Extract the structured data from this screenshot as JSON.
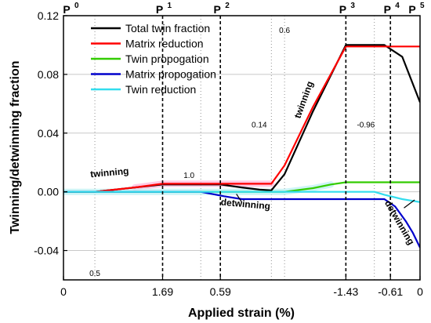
{
  "chart_data": {
    "type": "line",
    "ylabel": "Twinning/detwinning fraction",
    "xlabel": "Applied strain (%)",
    "ylim": [
      -0.06,
      0.12
    ],
    "xlim": [
      0,
      1
    ],
    "yticks": [
      "-0.04",
      "0.00",
      "0.04",
      "0.08",
      "0.12"
    ],
    "ytick_values": [
      -0.04,
      0.0,
      0.04,
      0.08,
      0.12
    ],
    "xticks": [
      {
        "label": "0",
        "x": 0.0
      },
      {
        "label": "1.69",
        "x": 0.278
      },
      {
        "label": "0.59",
        "x": 0.44
      },
      {
        "label": "-1.43",
        "x": 0.792
      },
      {
        "label": "-0.61",
        "x": 0.917
      },
      {
        "label": "0",
        "x": 1.0
      }
    ],
    "markers": [
      {
        "label": "P",
        "sup": "0",
        "x": 0.0
      },
      {
        "label": "P",
        "sup": "1",
        "x": 0.278
      },
      {
        "label": "P",
        "sup": "2",
        "x": 0.44
      },
      {
        "label": "P",
        "sup": "3",
        "x": 0.792
      },
      {
        "label": "P",
        "sup": "4",
        "x": 0.917
      },
      {
        "label": "P",
        "sup": "5",
        "x": 1.0
      }
    ],
    "minor_lines": [
      {
        "x": 0.088,
        "label": "0.5",
        "label_pos": "bottom"
      },
      {
        "x": 0.385,
        "label": "",
        "label_pos": ""
      },
      {
        "x": 0.583,
        "label": "",
        "label_pos": ""
      },
      {
        "x": 0.62,
        "label": "0.6",
        "label_pos": "top"
      },
      {
        "x": 0.872,
        "label": "",
        "label_pos": ""
      }
    ],
    "annotations": [
      {
        "text": "twinning",
        "x": 0.13,
        "y": 0.011,
        "rotate": -5
      },
      {
        "text": "1.0",
        "x": 0.352,
        "y": 0.0095,
        "rotate": 0,
        "small": true
      },
      {
        "text": "detwinning",
        "x": 0.51,
        "y": -0.0105,
        "rotate": 5
      },
      {
        "text": "0.14",
        "x": 0.549,
        "y": 0.044,
        "rotate": 0,
        "small": true
      },
      {
        "text": "twinning",
        "x": 0.682,
        "y": 0.062,
        "rotate": -70
      },
      {
        "text": "-0.96",
        "x": 0.848,
        "y": 0.044,
        "rotate": 0,
        "small": true
      },
      {
        "text": "detwinning",
        "x": 0.935,
        "y": -0.022,
        "rotate": 60
      }
    ],
    "legend_position": "top-left",
    "series": [
      {
        "name": "Total twin fraction",
        "color": "#000000",
        "x": [
          0,
          0.088,
          0.2,
          0.278,
          0.35,
          0.44,
          0.5,
          0.55,
          0.583,
          0.62,
          0.7,
          0.792,
          0.85,
          0.9,
          0.95,
          1.0
        ],
        "y": [
          0,
          0,
          0.003,
          0.005,
          0.005,
          0.005,
          0.003,
          0.0015,
          0.001,
          0.012,
          0.055,
          0.1,
          0.1,
          0.1,
          0.092,
          0.061
        ]
      },
      {
        "name": "Matrix reduction",
        "color": "#ff0000",
        "x": [
          0,
          0.088,
          0.2,
          0.278,
          0.44,
          0.583,
          0.62,
          0.7,
          0.792,
          1.0
        ],
        "y": [
          0,
          0,
          0.003,
          0.0055,
          0.0055,
          0.0055,
          0.018,
          0.058,
          0.099,
          0.099
        ]
      },
      {
        "name": "Twin propogation",
        "color": "#33cc00",
        "x": [
          0,
          0.55,
          0.62,
          0.7,
          0.75,
          0.792,
          1.0
        ],
        "y": [
          0,
          0,
          0,
          0.0025,
          0.005,
          0.0065,
          0.0065
        ]
      },
      {
        "name": "Matrix propogation",
        "color": "#0000cc",
        "x": [
          0,
          0.385,
          0.45,
          0.5,
          0.583,
          0.792,
          0.9,
          0.93,
          0.96,
          0.98,
          1.0
        ],
        "y": [
          0,
          0,
          -0.003,
          -0.005,
          -0.005,
          -0.005,
          -0.005,
          -0.01,
          -0.02,
          -0.028,
          -0.038
        ]
      },
      {
        "name": "Twin reduction",
        "color": "#33ddee",
        "x": [
          0,
          0.872,
          0.9,
          0.95,
          1.0
        ],
        "y": [
          0,
          0,
          -0.002,
          -0.005,
          -0.007
        ]
      }
    ]
  }
}
